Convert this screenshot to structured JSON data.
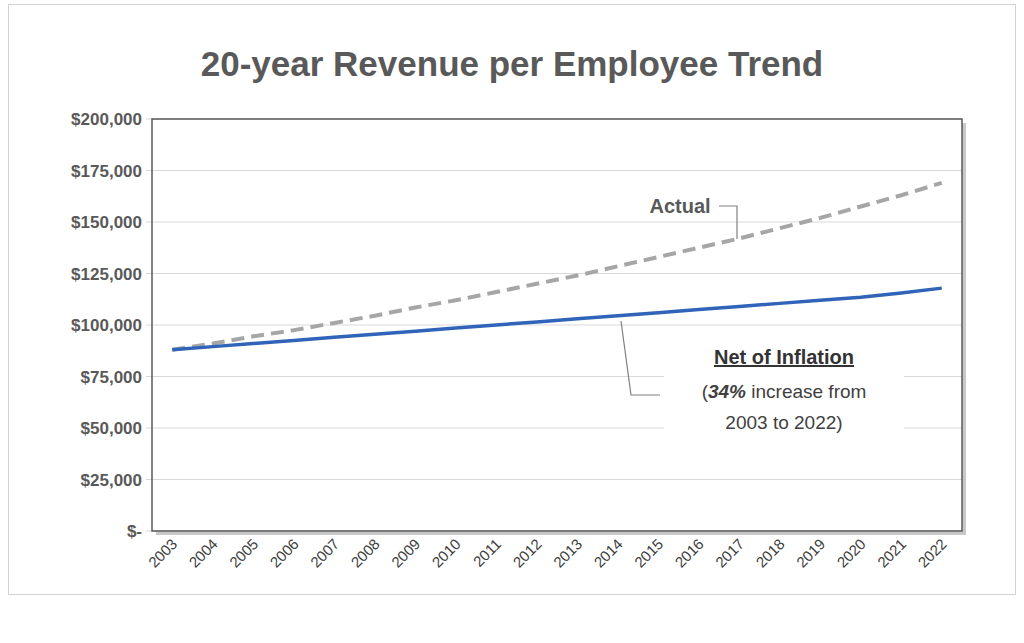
{
  "chart_data": {
    "type": "line",
    "title": "20-year Revenue per Employee Trend",
    "categories": [
      "2003",
      "2004",
      "2005",
      "2006",
      "2007",
      "2008",
      "2009",
      "2010",
      "2011",
      "2012",
      "2013",
      "2014",
      "2015",
      "2016",
      "2017",
      "2018",
      "2019",
      "2020",
      "2021",
      "2022"
    ],
    "series": [
      {
        "name": "Actual",
        "color": "#a6a6a6",
        "line_style": "dashed",
        "values": [
          88000,
          91000,
          94500,
          97500,
          101000,
          104500,
          108500,
          112000,
          116000,
          120000,
          124000,
          128500,
          133000,
          137500,
          142000,
          147000,
          152000,
          157500,
          163000,
          169000
        ]
      },
      {
        "name": "Net of Inflation",
        "color": "#2f64b9",
        "line_style": "solid",
        "values": [
          88000,
          89500,
          91000,
          92500,
          94000,
          95500,
          97000,
          98500,
          100000,
          101500,
          103000,
          104500,
          106000,
          107500,
          109000,
          110500,
          112000,
          113500,
          115500,
          117900
        ]
      }
    ],
    "annotations": [
      "(34% increase from",
      "2003 to 2022)"
    ],
    "ylim": [
      0,
      200000
    ],
    "yticks": [
      {
        "value": 0,
        "label": "$-"
      },
      {
        "value": 25000,
        "label": "$25,000"
      },
      {
        "value": 50000,
        "label": "$50,000"
      },
      {
        "value": 75000,
        "label": "$75,000"
      },
      {
        "value": 100000,
        "label": "$100,000"
      },
      {
        "value": 125000,
        "label": "$125,000"
      },
      {
        "value": 150000,
        "label": "$150,000"
      },
      {
        "value": 175000,
        "label": "$175,000"
      },
      {
        "value": 200000,
        "label": "$200,000"
      }
    ],
    "grid": true
  }
}
